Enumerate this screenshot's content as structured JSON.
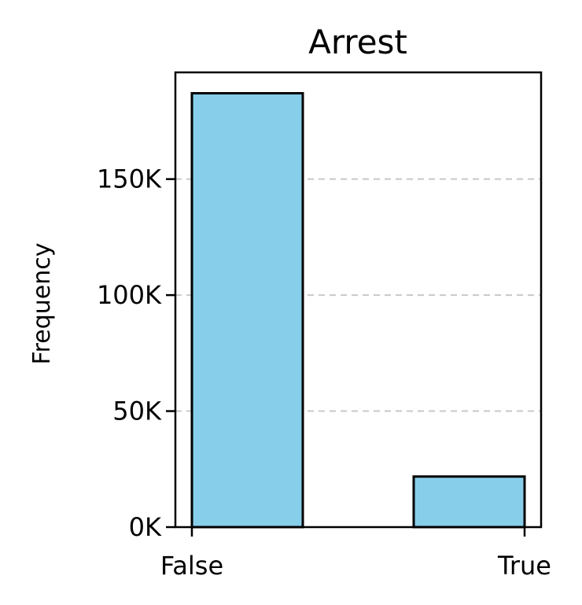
{
  "chart_data": {
    "type": "bar",
    "title": "Arrest",
    "xlabel": "",
    "ylabel": "Frequency",
    "categories": [
      "False",
      "True"
    ],
    "values": [
      187000,
      21800
    ],
    "ylim": [
      0,
      196000
    ],
    "yticks": [
      0,
      50000,
      100000,
      150000
    ],
    "ytick_labels": [
      "0K",
      "50K",
      "100K",
      "150K"
    ],
    "grid": "horizontal dashed",
    "legend": "none",
    "bar_color": "#87CEEB",
    "edge_color": "#000000",
    "grid_color": "#c8c8c8"
  }
}
